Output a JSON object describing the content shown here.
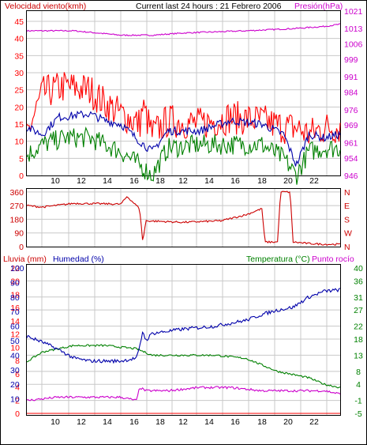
{
  "header": {
    "left_label": "Velocidad viento(kmh)",
    "center_title": "Current last 24 hours : 21 Febrero 2006",
    "right_label": "Presión(hPa)"
  },
  "colors": {
    "red": "#ff0000",
    "dark_red": "#cc0000",
    "blue": "#0000aa",
    "green": "#008000",
    "magenta": "#cc00cc",
    "grid": "#c8c8c8",
    "frame": "#000000"
  },
  "chart_data": [
    {
      "type": "line",
      "name": "wind-pressure",
      "x_ticks": [
        "10",
        "12",
        "14",
        "16",
        "18",
        "12",
        "14",
        "16",
        "18",
        "20",
        "22"
      ],
      "y_left": {
        "label": "Velocidad viento(kmh)",
        "ticks": [
          0,
          5,
          10,
          15,
          20,
          25,
          30,
          35,
          40,
          45
        ],
        "range": [
          0,
          48
        ]
      },
      "y_right": {
        "label": "Presión(hPa)",
        "ticks": [
          946,
          954,
          961,
          969,
          976,
          984,
          991,
          999,
          1006,
          1013,
          1021
        ],
        "range": [
          946,
          1021
        ]
      },
      "series": [
        {
          "axis": "left",
          "color": "red",
          "keypoints": [
            [
              0,
              12
            ],
            [
              0.05,
              24
            ],
            [
              0.12,
              26
            ],
            [
              0.2,
              25
            ],
            [
              0.25,
              21
            ],
            [
              0.3,
              18
            ],
            [
              0.36,
              15
            ],
            [
              0.37,
              20
            ],
            [
              0.4,
              12
            ],
            [
              0.45,
              16
            ],
            [
              0.55,
              15
            ],
            [
              0.65,
              17
            ],
            [
              0.75,
              16
            ],
            [
              0.82,
              14
            ],
            [
              0.86,
              14
            ],
            [
              0.9,
              12
            ],
            [
              0.95,
              14
            ],
            [
              1.0,
              14
            ]
          ],
          "noise": 5
        },
        {
          "axis": "left",
          "color": "blue",
          "keypoints": [
            [
              0,
              14
            ],
            [
              0.05,
              12
            ],
            [
              0.1,
              17
            ],
            [
              0.2,
              18
            ],
            [
              0.25,
              16
            ],
            [
              0.3,
              15
            ],
            [
              0.36,
              10
            ],
            [
              0.4,
              7
            ],
            [
              0.45,
              13
            ],
            [
              0.55,
              13
            ],
            [
              0.65,
              16
            ],
            [
              0.75,
              15
            ],
            [
              0.82,
              12
            ],
            [
              0.86,
              3
            ],
            [
              0.9,
              12
            ],
            [
              0.95,
              11
            ],
            [
              1.0,
              12
            ]
          ],
          "noise": 1.2
        },
        {
          "axis": "left",
          "color": "green",
          "keypoints": [
            [
              0,
              6
            ],
            [
              0.05,
              9
            ],
            [
              0.12,
              11
            ],
            [
              0.2,
              11
            ],
            [
              0.25,
              9
            ],
            [
              0.3,
              7
            ],
            [
              0.36,
              3
            ],
            [
              0.4,
              0
            ],
            [
              0.45,
              8
            ],
            [
              0.55,
              9
            ],
            [
              0.65,
              9
            ],
            [
              0.75,
              9
            ],
            [
              0.82,
              5
            ],
            [
              0.86,
              0
            ],
            [
              0.9,
              7
            ],
            [
              0.95,
              8
            ],
            [
              1.0,
              8
            ]
          ],
          "noise": 3
        },
        {
          "axis": "right",
          "color": "magenta",
          "keypoints": [
            [
              0,
              1012
            ],
            [
              0.15,
              1012
            ],
            [
              0.3,
              1010
            ],
            [
              0.4,
              1010
            ],
            [
              0.5,
              1011
            ],
            [
              0.7,
              1012
            ],
            [
              0.85,
              1013
            ],
            [
              0.95,
              1014
            ],
            [
              1.0,
              1015
            ]
          ],
          "noise": 0.3
        }
      ]
    },
    {
      "type": "line",
      "name": "wind-direction",
      "y_left": {
        "ticks": [
          0,
          90,
          180,
          270,
          360
        ],
        "range": [
          0,
          380
        ]
      },
      "y_right": {
        "ticks": [
          "N",
          "W",
          "S",
          "E",
          "N"
        ]
      },
      "series": [
        {
          "axis": "left",
          "color": "dark_red",
          "keypoints": [
            [
              0,
              270
            ],
            [
              0.05,
              260
            ],
            [
              0.15,
              285
            ],
            [
              0.3,
              280
            ],
            [
              0.32,
              330
            ],
            [
              0.34,
              290
            ],
            [
              0.36,
              250
            ],
            [
              0.37,
              30
            ],
            [
              0.38,
              170
            ],
            [
              0.5,
              160
            ],
            [
              0.62,
              170
            ],
            [
              0.7,
              210
            ],
            [
              0.75,
              250
            ],
            [
              0.76,
              30
            ],
            [
              0.8,
              30
            ],
            [
              0.81,
              360
            ],
            [
              0.84,
              360
            ],
            [
              0.85,
              30
            ],
            [
              0.9,
              20
            ],
            [
              0.95,
              15
            ],
            [
              1.0,
              15
            ]
          ],
          "noise": 6
        }
      ]
    },
    {
      "type": "line",
      "name": "rain-humidity-temp",
      "left_label_rain": "Lluvia (mm)",
      "left_label_humidity": "Humedad (%)",
      "right_label_temp": "Temperatura (°C)",
      "right_label_dew": "Punto rocío",
      "y_rain": {
        "ticks": [
          0,
          2,
          4,
          6,
          8,
          10,
          12,
          14,
          16,
          18,
          20,
          22
        ],
        "range": [
          0,
          22
        ]
      },
      "y_humidity": {
        "ticks": [
          10,
          20,
          30,
          40,
          50,
          60,
          70,
          80,
          90,
          100
        ],
        "range": [
          0,
          100
        ]
      },
      "y_temp": {
        "ticks": [
          -5,
          -1,
          4,
          8,
          13,
          18,
          22,
          27,
          31,
          36,
          40
        ],
        "range": [
          -5,
          40
        ]
      },
      "x_ticks": [
        "10",
        "12",
        "14",
        "16",
        "18",
        "12",
        "14",
        "16",
        "18",
        "20",
        "22"
      ],
      "series": [
        {
          "axis": "humidity",
          "color": "blue",
          "keypoints": [
            [
              0,
              53
            ],
            [
              0.05,
              49
            ],
            [
              0.1,
              44
            ],
            [
              0.15,
              38
            ],
            [
              0.2,
              36
            ],
            [
              0.3,
              36
            ],
            [
              0.35,
              38
            ],
            [
              0.36,
              45
            ],
            [
              0.37,
              57
            ],
            [
              0.38,
              50
            ],
            [
              0.4,
              55
            ],
            [
              0.5,
              58
            ],
            [
              0.6,
              60
            ],
            [
              0.7,
              64
            ],
            [
              0.75,
              68
            ],
            [
              0.8,
              71
            ],
            [
              0.85,
              73
            ],
            [
              0.9,
              80
            ],
            [
              0.95,
              84
            ],
            [
              1.0,
              85
            ]
          ],
          "noise": 1.2
        },
        {
          "axis": "temp",
          "color": "green",
          "keypoints": [
            [
              0,
              11
            ],
            [
              0.05,
              14
            ],
            [
              0.15,
              16
            ],
            [
              0.25,
              16
            ],
            [
              0.35,
              15
            ],
            [
              0.4,
              13
            ],
            [
              0.5,
              13
            ],
            [
              0.6,
              13
            ],
            [
              0.7,
              12
            ],
            [
              0.75,
              10
            ],
            [
              0.8,
              8
            ],
            [
              0.85,
              7
            ],
            [
              0.9,
              6
            ],
            [
              0.95,
              4
            ],
            [
              1.0,
              3
            ]
          ],
          "noise": 0.3
        },
        {
          "axis": "temp",
          "color": "magenta",
          "keypoints": [
            [
              0,
              -1
            ],
            [
              0.1,
              0
            ],
            [
              0.2,
              0
            ],
            [
              0.3,
              0
            ],
            [
              0.35,
              -1
            ],
            [
              0.36,
              3
            ],
            [
              0.38,
              2
            ],
            [
              0.45,
              2
            ],
            [
              0.55,
              3
            ],
            [
              0.65,
              3
            ],
            [
              0.75,
              2
            ],
            [
              0.85,
              2
            ],
            [
              0.95,
              2
            ],
            [
              1.0,
              1
            ]
          ],
          "noise": 0.35
        },
        {
          "axis": "rain",
          "color": "red",
          "keypoints": [
            [
              0,
              0
            ],
            [
              1.0,
              0
            ]
          ],
          "noise": 0
        }
      ]
    }
  ]
}
